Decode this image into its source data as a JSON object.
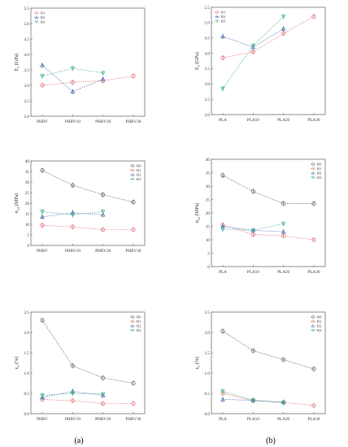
{
  "colors": {
    "R0": "#555555",
    "R1": "#e0606a",
    "R2": "#3b5fa8",
    "R3": "#3aaa88"
  },
  "captions": [
    "(a)",
    "(b)"
  ],
  "chart_data": [
    {
      "type": "line",
      "panel": "(a)",
      "ylabel_main": "E",
      "ylabel_sub": "a",
      "ylabel_unit": " (GPa)",
      "categories": [
        "PHBV",
        "PHBV10",
        "PHBV20",
        "PHBV30"
      ],
      "ylim": [
        2.0,
        5.5
      ],
      "yticks": [
        "2.0",
        "2.5",
        "3.0",
        "3.5",
        "4.0",
        "4.5",
        "5.0",
        "5.5"
      ],
      "legend_position": "top-left",
      "series": [
        {
          "name": "R1",
          "key": "R1",
          "values": [
            3.0,
            3.1,
            3.15,
            3.3
          ]
        },
        {
          "name": "R2",
          "key": "R2",
          "values": [
            3.65,
            2.8,
            3.2,
            null
          ]
        },
        {
          "name": "R3",
          "key": "R3",
          "values": [
            3.3,
            3.55,
            3.4,
            null
          ]
        }
      ]
    },
    {
      "type": "line",
      "panel": "(b)",
      "ylabel_main": "E",
      "ylabel_sub": "a",
      "ylabel_unit": " (GPa)",
      "categories": [
        "PLA",
        "PLA10",
        "PLA20",
        "PLA30"
      ],
      "ylim": [
        2.0,
        5.5
      ],
      "yticks": [
        "2.0",
        "2.5",
        "3.0",
        "3.5",
        "4.0",
        "4.5",
        "5.0",
        "5.5"
      ],
      "legend_position": "top-left",
      "series": [
        {
          "name": "R1",
          "key": "R1",
          "values": [
            3.85,
            4.05,
            4.65,
            5.2
          ]
        },
        {
          "name": "R2",
          "key": "R2",
          "values": [
            4.55,
            4.2,
            4.8,
            null
          ]
        },
        {
          "name": "R3",
          "key": "R3",
          "values": [
            2.85,
            4.25,
            5.2,
            null
          ]
        }
      ]
    },
    {
      "type": "line",
      "panel": "(a)",
      "ylabel_main": "σ",
      "ylabel_sub": "u,t",
      "ylabel_unit": " (MPa)",
      "categories": [
        "PHBV",
        "PHBV10",
        "PHBV20",
        "PHBV30"
      ],
      "ylim": [
        0,
        40
      ],
      "yticks": [
        "0",
        "5",
        "10",
        "15",
        "20",
        "25",
        "30",
        "35",
        "40"
      ],
      "legend_position": "top-right",
      "series": [
        {
          "name": "R0",
          "key": "R0",
          "values": [
            35.5,
            28.5,
            24,
            20.5
          ]
        },
        {
          "name": "R1",
          "key": "R1",
          "values": [
            9.5,
            8.8,
            7.5,
            7.5
          ]
        },
        {
          "name": "R2",
          "key": "R2",
          "values": [
            13.5,
            15.5,
            14.5,
            null
          ]
        },
        {
          "name": "R3",
          "key": "R3",
          "values": [
            16,
            14.5,
            16,
            null
          ]
        }
      ]
    },
    {
      "type": "line",
      "panel": "(b)",
      "ylabel_main": "σ",
      "ylabel_sub": "u,t",
      "ylabel_unit": " (MPa)",
      "categories": [
        "PLA",
        "PLA10",
        "PLA20",
        "PLA30"
      ],
      "ylim": [
        0,
        40
      ],
      "yticks": [
        "0",
        "5",
        "10",
        "15",
        "20",
        "25",
        "30",
        "35",
        "40"
      ],
      "legend_position": "top-right",
      "series": [
        {
          "name": "R0",
          "key": "R0",
          "values": [
            34,
            28,
            23.5,
            23.5
          ]
        },
        {
          "name": "R1",
          "key": "R1",
          "values": [
            15.5,
            12,
            11.5,
            10
          ]
        },
        {
          "name": "R2",
          "key": "R2",
          "values": [
            15,
            13.5,
            13,
            null
          ]
        },
        {
          "name": "R3",
          "key": "R3",
          "values": [
            14,
            13.5,
            16,
            null
          ]
        }
      ]
    },
    {
      "type": "line",
      "panel": "(a)",
      "ylabel_main": "ε",
      "ylabel_sub": "u",
      "ylabel_unit": " (%)",
      "categories": [
        "PHBV",
        "PHBV10",
        "PHBV20",
        "PHBV30"
      ],
      "ylim": [
        0.0,
        2.5
      ],
      "yticks": [
        "0.0",
        "0.5",
        "1.0",
        "1.5",
        "2.0",
        "2.5"
      ],
      "legend_position": "top-right",
      "series": [
        {
          "name": "R0",
          "key": "R0",
          "values": [
            2.3,
            1.18,
            0.88,
            0.75
          ]
        },
        {
          "name": "R1",
          "key": "R1",
          "values": [
            0.35,
            0.32,
            0.25,
            0.25
          ]
        },
        {
          "name": "R2",
          "key": "R2",
          "values": [
            0.4,
            0.55,
            0.45,
            null
          ]
        },
        {
          "name": "R3",
          "key": "R3",
          "values": [
            0.45,
            0.5,
            0.48,
            null
          ]
        }
      ]
    },
    {
      "type": "line",
      "panel": "(b)",
      "ylabel_main": "ε",
      "ylabel_sub": "u",
      "ylabel_unit": " (%)",
      "categories": [
        "PLA",
        "PLA10",
        "PLA20",
        "PLA30"
      ],
      "ylim": [
        0.0,
        2.5
      ],
      "yticks": [
        "0.0",
        "0.5",
        "1.0",
        "1.5",
        "2.0",
        "2.5"
      ],
      "legend_position": "top-right",
      "series": [
        {
          "name": "R0",
          "key": "R0",
          "values": [
            2.03,
            1.55,
            1.33,
            1.1
          ]
        },
        {
          "name": "R1",
          "key": "R1",
          "values": [
            0.5,
            0.32,
            0.28,
            0.2
          ]
        },
        {
          "name": "R2",
          "key": "R2",
          "values": [
            0.35,
            0.33,
            0.28,
            null
          ]
        },
        {
          "name": "R3",
          "key": "R3",
          "values": [
            0.55,
            0.33,
            0.27,
            null
          ]
        }
      ]
    }
  ]
}
